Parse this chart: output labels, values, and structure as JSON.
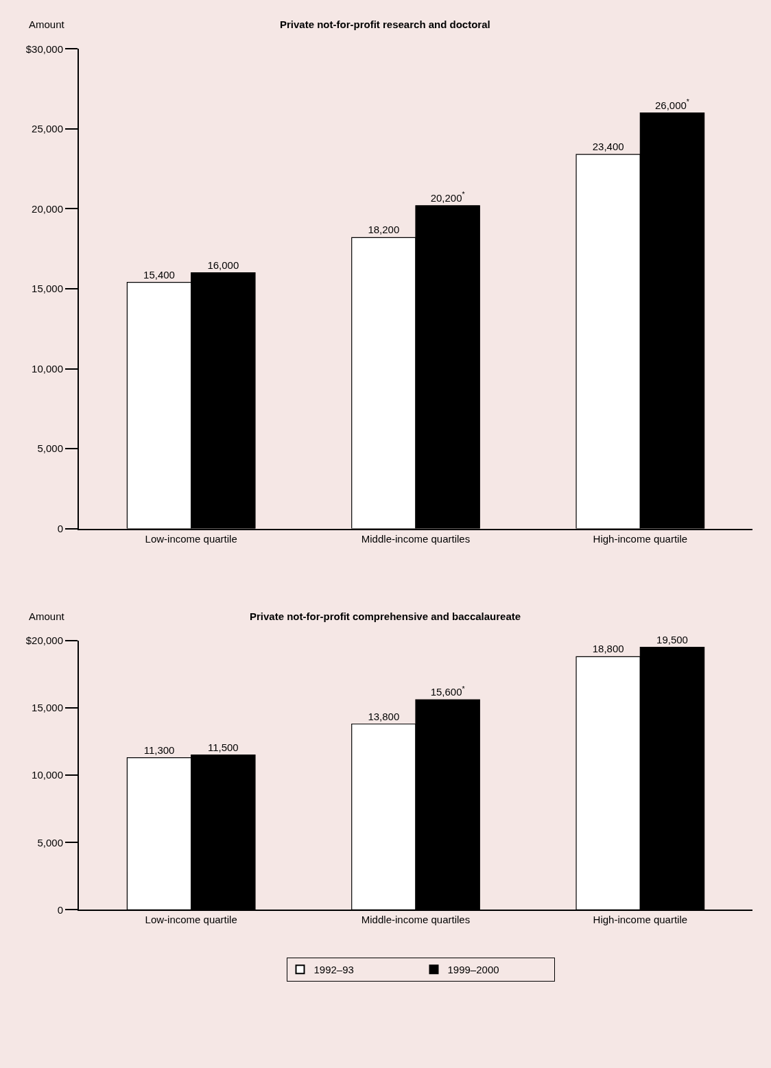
{
  "chart_data": [
    {
      "type": "bar",
      "title": "Private not-for-profit research and doctoral",
      "ylabel": "Amount",
      "categories": [
        "Low-income quartile",
        "Middle-income quartiles",
        "High-income quartile"
      ],
      "series": [
        {
          "name": "1992–93",
          "color": "#ffffff",
          "values": [
            15400,
            18200,
            23400
          ],
          "value_labels": [
            "15,400",
            "18,200",
            "23,400"
          ]
        },
        {
          "name": "1999–2000",
          "color": "#000000",
          "values": [
            16000,
            20200,
            26000
          ],
          "value_labels": [
            "16,000",
            "20,200$^{*}$",
            "26,000$^{*}$"
          ]
        }
      ],
      "ylim": [
        0,
        30000
      ],
      "yticks": [
        0,
        {
          "value": 5000,
          "label": "5,000"
        },
        {
          "value": 10000,
          "label": "10,000"
        },
        {
          "value": 15000,
          "label": "15,000"
        },
        {
          "value": 20000,
          "label": "20,000"
        },
        {
          "value": 25000,
          "label": "25,000"
        },
        {
          "value": 30000,
          "label": "$30,000"
        }
      ],
      "grid": false,
      "legend": "bottom"
    },
    {
      "type": "bar",
      "title": "Private not-for-profit comprehensive and baccalaureate",
      "ylabel": "Amount",
      "categories": [
        "Low-income quartile",
        "Middle-income quartiles",
        "High-income quartile"
      ],
      "series": [
        {
          "name": "1992–93",
          "color": "#ffffff",
          "values": [
            11300,
            13800,
            18800
          ],
          "value_labels": [
            "11,300",
            "13,800",
            "18,800"
          ]
        },
        {
          "name": "1999–2000",
          "color": "#000000",
          "values": [
            11500,
            15600,
            19500
          ],
          "value_labels": [
            "11,500",
            "15,600$^{*}$",
            "19,500"
          ]
        }
      ],
      "ylim": [
        0,
        20000
      ],
      "yticks": [
        0,
        {
          "value": 5000,
          "label": "5,000"
        },
        {
          "value": 10000,
          "label": "10,000"
        },
        {
          "value": 15000,
          "label": "15,000"
        },
        {
          "value": 20000,
          "label": "$20,000"
        }
      ],
      "grid": false,
      "legend": "bottom"
    }
  ]
}
